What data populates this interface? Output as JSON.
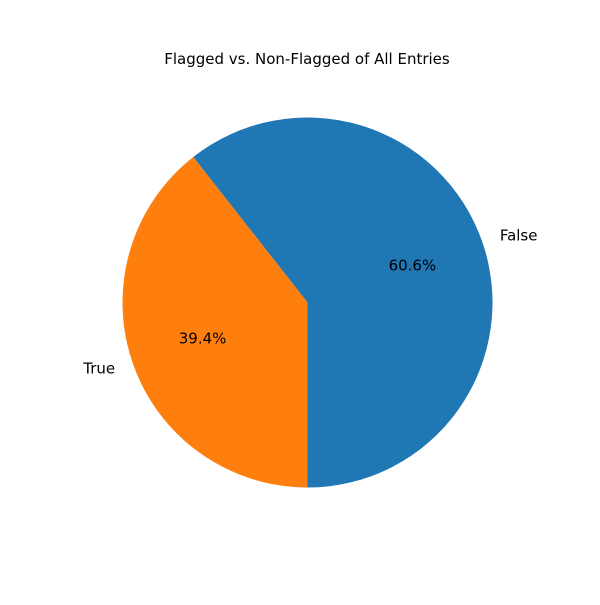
{
  "chart_data": {
    "type": "pie",
    "title": "Flagged vs. Non-Flagged of All Entries",
    "slices": [
      {
        "label": "False",
        "value": 60.6,
        "pct_label": "60.6%",
        "color": "#1f77b4"
      },
      {
        "label": "True",
        "value": 39.4,
        "pct_label": "39.4%",
        "color": "#ff7f0e"
      }
    ],
    "start_angle_deg": 270,
    "direction": "counterclockwise",
    "legend": "none"
  }
}
